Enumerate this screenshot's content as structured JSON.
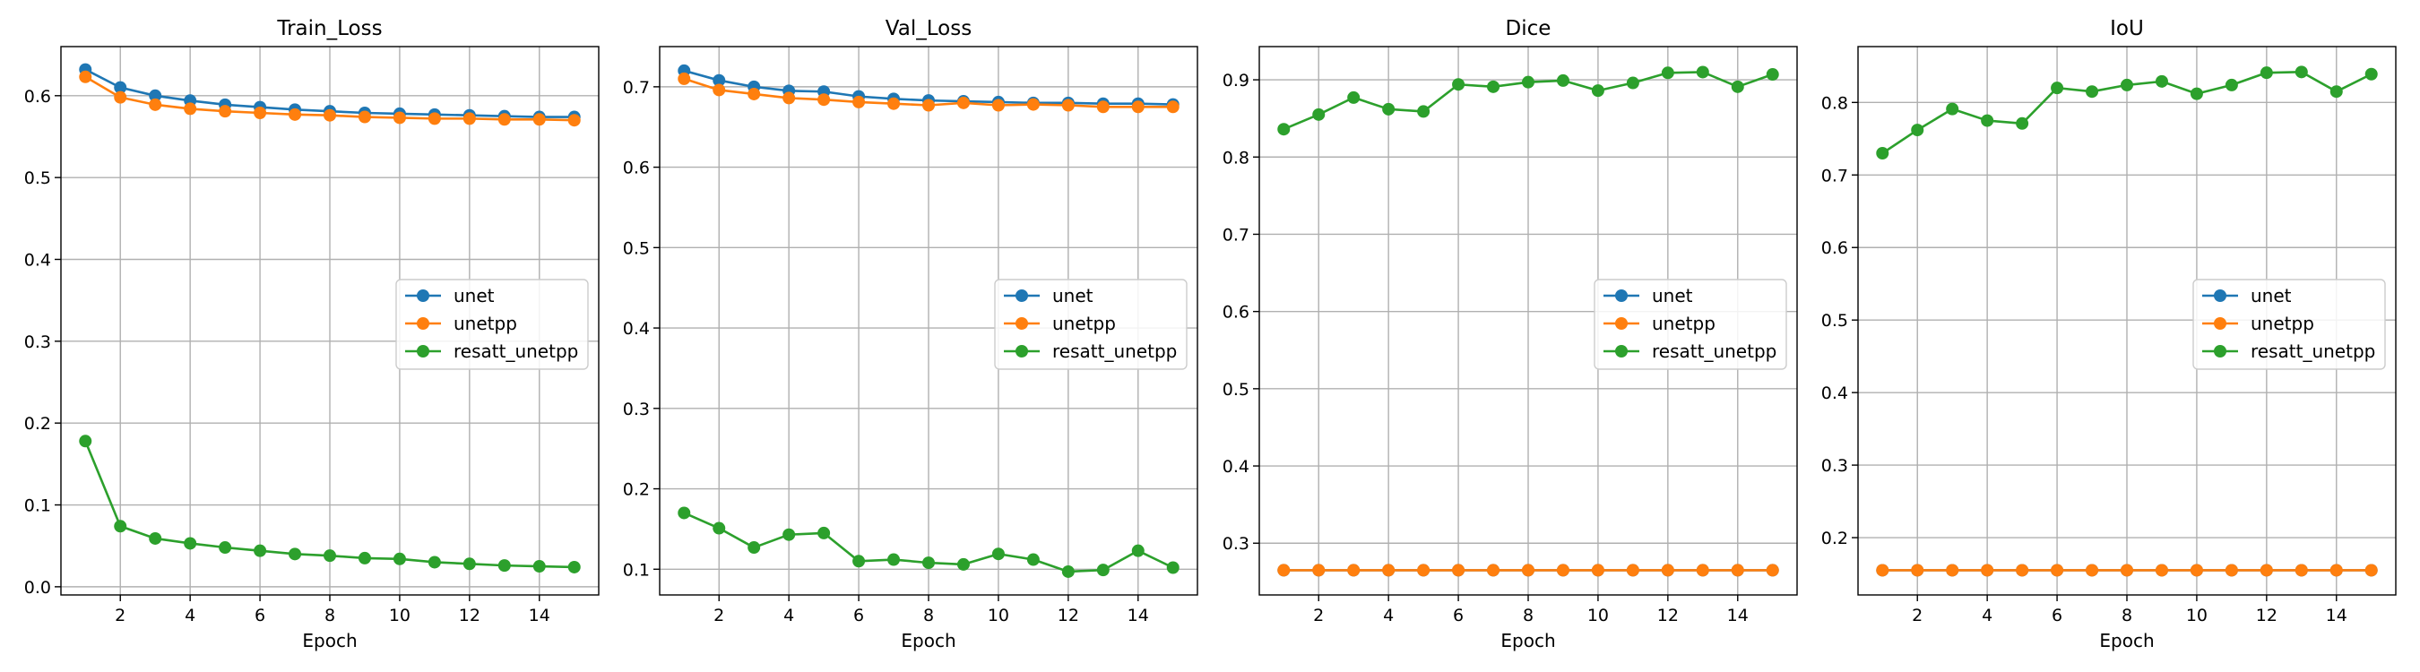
{
  "chart_data": [
    {
      "type": "line",
      "title": "Train_Loss",
      "xlabel": "Epoch",
      "ylabel": "",
      "x": [
        1,
        2,
        3,
        4,
        5,
        6,
        7,
        8,
        9,
        10,
        11,
        12,
        13,
        14,
        15
      ],
      "xlim": [
        0.3,
        15.7
      ],
      "ylim": [
        -0.01,
        0.66
      ],
      "xticks": [
        2,
        4,
        6,
        8,
        10,
        12,
        14
      ],
      "yticks": [
        0.0,
        0.1,
        0.2,
        0.3,
        0.4,
        0.5,
        0.6
      ],
      "ytick_decimals": 1,
      "grid": true,
      "legend_position": "center-right",
      "series": [
        {
          "name": "unet",
          "color": "#1f77b4",
          "values": [
            0.632,
            0.61,
            0.6,
            0.594,
            0.589,
            0.586,
            0.583,
            0.581,
            0.579,
            0.578,
            0.577,
            0.576,
            0.575,
            0.574,
            0.574
          ]
        },
        {
          "name": "unetpp",
          "color": "#ff7f0e",
          "values": [
            0.623,
            0.598,
            0.589,
            0.584,
            0.581,
            0.579,
            0.577,
            0.576,
            0.574,
            0.573,
            0.572,
            0.572,
            0.571,
            0.571,
            0.57
          ]
        },
        {
          "name": "resatt_unetpp",
          "color": "#2ca02c",
          "values": [
            0.178,
            0.074,
            0.059,
            0.053,
            0.048,
            0.044,
            0.04,
            0.038,
            0.035,
            0.034,
            0.03,
            0.028,
            0.026,
            0.025,
            0.024
          ]
        }
      ]
    },
    {
      "type": "line",
      "title": "Val_Loss",
      "xlabel": "Epoch",
      "ylabel": "",
      "x": [
        1,
        2,
        3,
        4,
        5,
        6,
        7,
        8,
        9,
        10,
        11,
        12,
        13,
        14,
        15
      ],
      "xlim": [
        0.3,
        15.7
      ],
      "ylim": [
        0.068,
        0.75
      ],
      "xticks": [
        2,
        4,
        6,
        8,
        10,
        12,
        14
      ],
      "yticks": [
        0.1,
        0.2,
        0.3,
        0.4,
        0.5,
        0.6,
        0.7
      ],
      "ytick_decimals": 1,
      "grid": true,
      "legend_position": "center-right",
      "series": [
        {
          "name": "unet",
          "color": "#1f77b4",
          "values": [
            0.72,
            0.708,
            0.7,
            0.695,
            0.694,
            0.688,
            0.685,
            0.683,
            0.682,
            0.681,
            0.68,
            0.68,
            0.679,
            0.679,
            0.678
          ]
        },
        {
          "name": "unetpp",
          "color": "#ff7f0e",
          "values": [
            0.71,
            0.696,
            0.691,
            0.686,
            0.684,
            0.681,
            0.679,
            0.677,
            0.68,
            0.677,
            0.678,
            0.677,
            0.675,
            0.675,
            0.675
          ]
        },
        {
          "name": "resatt_unetpp",
          "color": "#2ca02c",
          "values": [
            0.17,
            0.151,
            0.127,
            0.143,
            0.145,
            0.11,
            0.112,
            0.108,
            0.106,
            0.119,
            0.112,
            0.097,
            0.099,
            0.123,
            0.102
          ]
        }
      ]
    },
    {
      "type": "line",
      "title": "Dice",
      "xlabel": "Epoch",
      "ylabel": "",
      "x": [
        1,
        2,
        3,
        4,
        5,
        6,
        7,
        8,
        9,
        10,
        11,
        12,
        13,
        14,
        15
      ],
      "xlim": [
        0.3,
        15.7
      ],
      "ylim": [
        0.233,
        0.943
      ],
      "xticks": [
        2,
        4,
        6,
        8,
        10,
        12,
        14
      ],
      "yticks": [
        0.3,
        0.4,
        0.5,
        0.6,
        0.7,
        0.8,
        0.9
      ],
      "ytick_decimals": 1,
      "grid": true,
      "legend_position": "center-right",
      "series": [
        {
          "name": "unet",
          "color": "#1f77b4",
          "values": [
            0.265,
            0.265,
            0.265,
            0.265,
            0.265,
            0.265,
            0.265,
            0.265,
            0.265,
            0.265,
            0.265,
            0.265,
            0.265,
            0.265,
            0.265
          ]
        },
        {
          "name": "unetpp",
          "color": "#ff7f0e",
          "values": [
            0.265,
            0.265,
            0.265,
            0.265,
            0.265,
            0.265,
            0.265,
            0.265,
            0.265,
            0.265,
            0.265,
            0.265,
            0.265,
            0.265,
            0.265
          ]
        },
        {
          "name": "resatt_unetpp",
          "color": "#2ca02c",
          "values": [
            0.836,
            0.855,
            0.877,
            0.862,
            0.859,
            0.894,
            0.891,
            0.897,
            0.899,
            0.886,
            0.896,
            0.909,
            0.91,
            0.891,
            0.907
          ]
        }
      ]
    },
    {
      "type": "line",
      "title": "IoU",
      "xlabel": "Epoch",
      "ylabel": "",
      "x": [
        1,
        2,
        3,
        4,
        5,
        6,
        7,
        8,
        9,
        10,
        11,
        12,
        13,
        14,
        15
      ],
      "xlim": [
        0.3,
        15.7
      ],
      "ylim": [
        0.121,
        0.877
      ],
      "xticks": [
        2,
        4,
        6,
        8,
        10,
        12,
        14
      ],
      "yticks": [
        0.2,
        0.3,
        0.4,
        0.5,
        0.6,
        0.7,
        0.8
      ],
      "ytick_decimals": 1,
      "grid": true,
      "legend_position": "center-right",
      "series": [
        {
          "name": "unet",
          "color": "#1f77b4",
          "values": [
            0.155,
            0.155,
            0.155,
            0.155,
            0.155,
            0.155,
            0.155,
            0.155,
            0.155,
            0.155,
            0.155,
            0.155,
            0.155,
            0.155,
            0.155
          ]
        },
        {
          "name": "unetpp",
          "color": "#ff7f0e",
          "values": [
            0.155,
            0.155,
            0.155,
            0.155,
            0.155,
            0.155,
            0.155,
            0.155,
            0.155,
            0.155,
            0.155,
            0.155,
            0.155,
            0.155,
            0.155
          ]
        },
        {
          "name": "resatt_unetpp",
          "color": "#2ca02c",
          "values": [
            0.73,
            0.762,
            0.791,
            0.775,
            0.771,
            0.82,
            0.815,
            0.824,
            0.829,
            0.812,
            0.824,
            0.841,
            0.842,
            0.815,
            0.839
          ]
        }
      ]
    }
  ]
}
